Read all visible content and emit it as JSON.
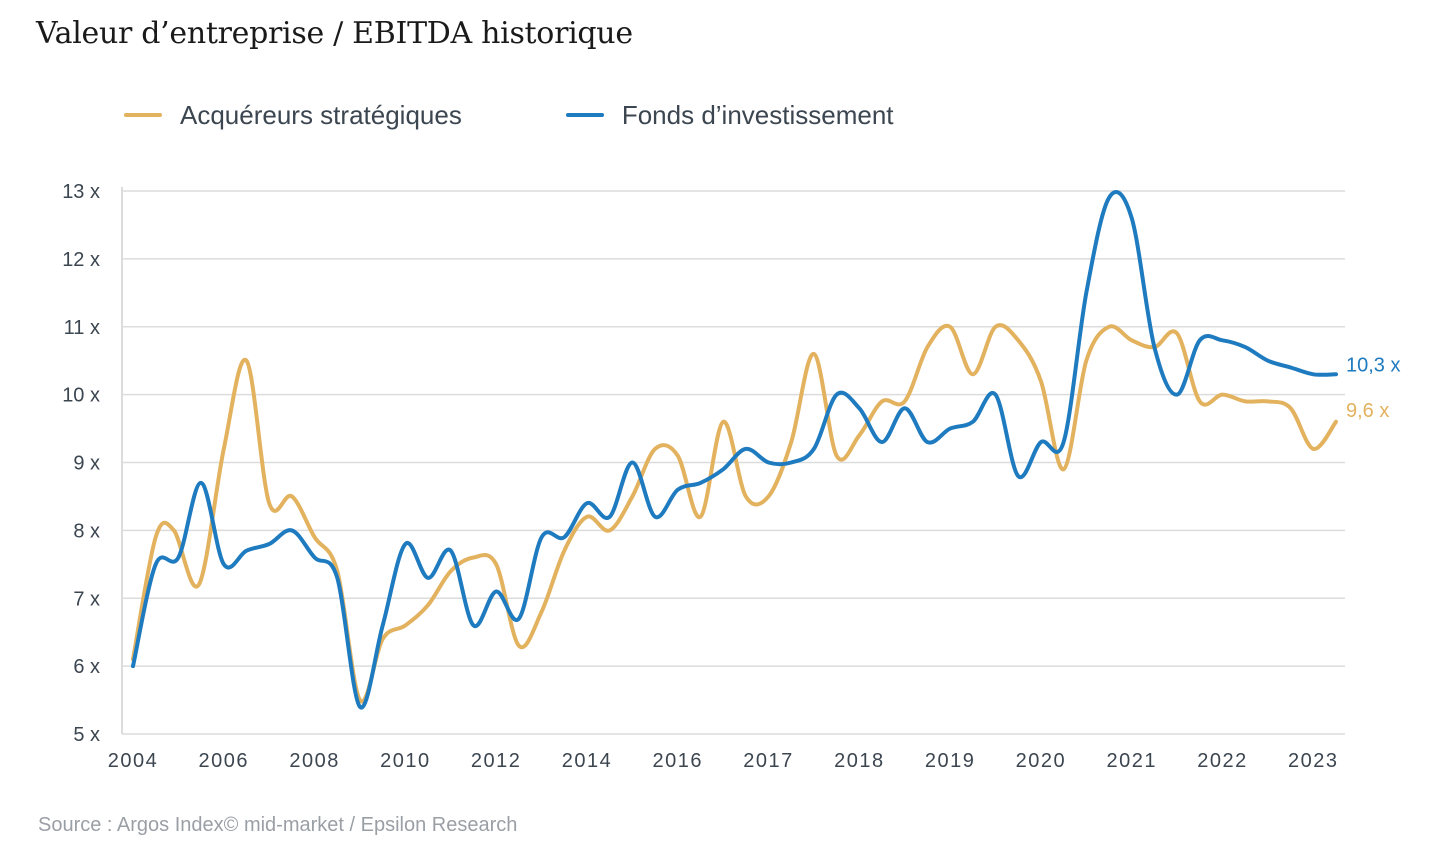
{
  "title": "Valeur d’entreprise / EBITDA historique",
  "source": "Source : Argos Index© mid-market / Epsilon Research",
  "colors": {
    "strategic": "#E3B25F",
    "funds": "#1F7BBF",
    "grid": "#dcdcdc",
    "axis_text": "#3c4650"
  },
  "chart_data": {
    "type": "line",
    "title": "Valeur d’entreprise / EBITDA historique",
    "xlabel": "",
    "ylabel": "",
    "xlim": [
      0,
      53
    ],
    "ylim": [
      5,
      13
    ],
    "y_ticks": [
      5,
      6,
      7,
      8,
      9,
      10,
      11,
      12,
      13
    ],
    "y_tick_labels": [
      "5 x",
      "6 x",
      "7 x",
      "8 x",
      "9 x",
      "10 x",
      "11 x",
      "12 x",
      "13 x"
    ],
    "x_tick_positions": [
      0,
      4,
      8,
      12,
      16,
      20,
      24,
      28,
      32,
      36,
      40,
      44,
      48,
      52
    ],
    "x_tick_labels": [
      "2004",
      "2006",
      "2008",
      "2010",
      "2012",
      "2014",
      "2016",
      "2017",
      "2018",
      "2019",
      "2020",
      "2021",
      "2022",
      "2023"
    ],
    "legend_position": "top-left",
    "grid": true,
    "series": [
      {
        "name": "Acquéreurs stratégiques",
        "color": "#E3B25F",
        "end_label": "9,6 x",
        "x": [
          0,
          1,
          1.8,
          2.9,
          4,
          5,
          6,
          7,
          8,
          9,
          10,
          11,
          12,
          13,
          14,
          15,
          16,
          17,
          18,
          19,
          20,
          21,
          22,
          23,
          24,
          25,
          26,
          27,
          28,
          29,
          30,
          31,
          32,
          33,
          34,
          35,
          36,
          37,
          38,
          39,
          40,
          41,
          42,
          43,
          44,
          45,
          46,
          47,
          48,
          49,
          50,
          51,
          52,
          53
        ],
        "values": [
          6.1,
          7.9,
          8.0,
          7.2,
          9.2,
          10.5,
          8.4,
          8.5,
          7.9,
          7.4,
          5.5,
          6.4,
          6.6,
          6.9,
          7.4,
          7.6,
          7.5,
          6.3,
          6.8,
          7.7,
          8.2,
          8.0,
          8.5,
          9.2,
          9.1,
          8.2,
          9.6,
          8.5,
          8.5,
          9.3,
          10.6,
          9.1,
          9.4,
          9.9,
          9.9,
          10.7,
          11.0,
          10.3,
          11.0,
          10.8,
          10.2,
          8.9,
          10.5,
          11.0,
          10.8,
          10.7,
          10.9,
          9.9,
          10.0,
          9.9,
          9.9,
          9.8,
          9.2,
          9.6
        ]
      },
      {
        "name": "Fonds d’investissement",
        "color": "#1F7BBF",
        "end_label": "10,3 x",
        "x": [
          0,
          1,
          2,
          3,
          4,
          5,
          6,
          7,
          8,
          9,
          10,
          11,
          12,
          13,
          14,
          15,
          16,
          17,
          18,
          19,
          20,
          21,
          22,
          23,
          24,
          25,
          26,
          27,
          28,
          29,
          30,
          31,
          32,
          33,
          34,
          35,
          36,
          37,
          38,
          39,
          40,
          41,
          42,
          43,
          44,
          45,
          46,
          47,
          48,
          49,
          50,
          51,
          52,
          53
        ],
        "values": [
          6.0,
          7.5,
          7.6,
          8.7,
          7.5,
          7.7,
          7.8,
          8.0,
          7.6,
          7.3,
          5.4,
          6.6,
          7.8,
          7.3,
          7.7,
          6.6,
          7.1,
          6.7,
          7.9,
          7.9,
          8.4,
          8.2,
          9.0,
          8.2,
          8.6,
          8.7,
          8.9,
          9.2,
          9.0,
          9.0,
          9.2,
          10.0,
          9.8,
          9.3,
          9.8,
          9.3,
          9.5,
          9.6,
          10.0,
          8.8,
          9.3,
          9.3,
          11.5,
          12.9,
          12.6,
          10.7,
          10.0,
          10.8,
          10.8,
          10.7,
          10.5,
          10.4,
          10.3,
          10.3
        ]
      }
    ]
  }
}
